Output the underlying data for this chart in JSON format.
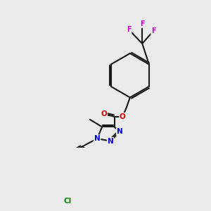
{
  "background_color": "#ebebeb",
  "bond_color": "#1a1a1a",
  "bond_width": 1.5,
  "atom_colors": {
    "N": "#0000dd",
    "O": "#dd0000",
    "F": "#cc00cc",
    "Cl": "#008800"
  },
  "font_size": 7.5,
  "figsize": [
    3.0,
    3.0
  ],
  "dpi": 100
}
